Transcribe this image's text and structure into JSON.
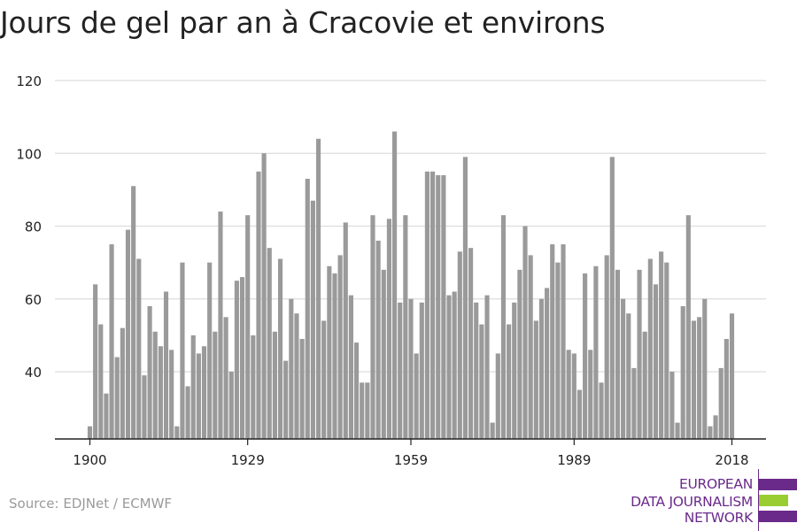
{
  "title": "Jours de gel par an à Cracovie et environs",
  "source": "Source: EDJNet / ECMWF",
  "logo": {
    "line1": "EUROPEAN",
    "line2": "DATA JOURNALISM",
    "line3": "NETWORK",
    "color_purple": "#6a2a8a",
    "color_green": "#9acd32"
  },
  "colors": {
    "bar": "#9a9a9a",
    "grid": "#dddddd",
    "axis": "#222222",
    "text": "#222222"
  },
  "chart_data": {
    "type": "bar",
    "title": "Jours de gel par an à Cracovie et environs",
    "xlabel": "",
    "ylabel": "",
    "ylim": [
      22,
      120
    ],
    "yticks": [
      40,
      60,
      80,
      100,
      120
    ],
    "xticks": [
      1900,
      1929,
      1959,
      1989,
      2018
    ],
    "grid": true,
    "x": [
      1900,
      1901,
      1902,
      1903,
      1904,
      1905,
      1906,
      1907,
      1908,
      1909,
      1910,
      1911,
      1912,
      1913,
      1914,
      1915,
      1916,
      1917,
      1918,
      1919,
      1920,
      1921,
      1922,
      1923,
      1924,
      1925,
      1926,
      1927,
      1928,
      1929,
      1930,
      1931,
      1932,
      1933,
      1934,
      1935,
      1936,
      1937,
      1938,
      1939,
      1940,
      1941,
      1942,
      1943,
      1944,
      1945,
      1946,
      1947,
      1948,
      1949,
      1950,
      1951,
      1952,
      1953,
      1954,
      1955,
      1956,
      1957,
      1958,
      1959,
      1960,
      1961,
      1962,
      1963,
      1964,
      1965,
      1966,
      1967,
      1968,
      1969,
      1970,
      1971,
      1972,
      1973,
      1974,
      1975,
      1976,
      1977,
      1978,
      1979,
      1980,
      1981,
      1982,
      1983,
      1984,
      1985,
      1986,
      1987,
      1988,
      1989,
      1990,
      1991,
      1992,
      1993,
      1994,
      1995,
      1996,
      1997,
      1998,
      1999,
      2000,
      2001,
      2002,
      2003,
      2004,
      2005,
      2006,
      2007,
      2008,
      2009,
      2010,
      2011,
      2012,
      2013,
      2014,
      2015,
      2016,
      2017,
      2018
    ],
    "values": [
      25,
      64,
      53,
      34,
      75,
      44,
      52,
      79,
      91,
      71,
      39,
      58,
      51,
      47,
      62,
      46,
      25,
      70,
      36,
      50,
      45,
      47,
      70,
      51,
      84,
      55,
      40,
      65,
      66,
      83,
      50,
      95,
      100,
      74,
      51,
      71,
      43,
      60,
      56,
      49,
      93,
      87,
      104,
      54,
      69,
      67,
      72,
      81,
      61,
      48,
      37,
      37,
      83,
      76,
      68,
      82,
      106,
      59,
      83,
      60,
      45,
      59,
      95,
      95,
      94,
      94,
      61,
      62,
      73,
      99,
      74,
      59,
      53,
      61,
      26,
      45,
      83,
      53,
      59,
      68,
      80,
      72,
      54,
      60,
      63,
      75,
      70,
      75,
      46,
      45,
      35,
      67,
      46,
      69,
      37,
      72,
      99,
      68,
      60,
      56,
      41,
      68,
      51,
      71,
      64,
      73,
      70,
      40,
      26,
      58,
      83,
      54,
      55,
      60,
      25,
      28,
      41,
      49,
      56
    ]
  }
}
